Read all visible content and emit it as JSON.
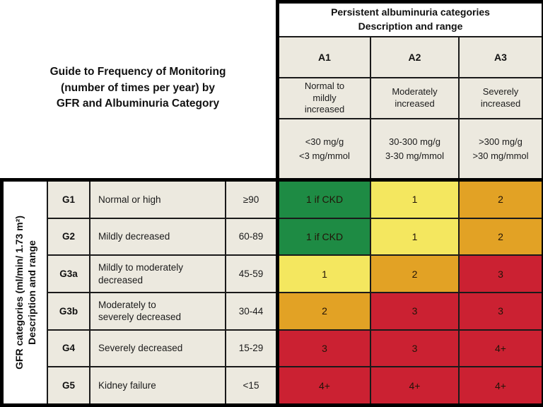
{
  "title": "Guide to Frequency of Monitoring\n(number of times per year) by\nGFR and Albuminuria Category",
  "albuminuria": {
    "title": "Persistent albuminuria categories\nDescription and range",
    "columns": [
      {
        "code": "A1",
        "description": "Normal to\nmildly\nincreased",
        "range": "<30 mg/g\n<3 mg/mmol"
      },
      {
        "code": "A2",
        "description": "Moderately\nincreased",
        "range": "30-300 mg/g\n3-30 mg/mmol"
      },
      {
        "code": "A3",
        "description": "Severely\nincreased",
        "range": ">300 mg/g\n>30 mg/mmol"
      }
    ]
  },
  "gfr_axis_label": "GFR categories (ml/min/ 1.73 m²)\nDescription and range",
  "gfr_rows": [
    {
      "code": "G1",
      "description": "Normal or high",
      "range": "≥90",
      "cells": [
        {
          "text": "1 if CKD",
          "color": "green"
        },
        {
          "text": "1",
          "color": "yellow"
        },
        {
          "text": "2",
          "color": "orange"
        }
      ]
    },
    {
      "code": "G2",
      "description": "Mildly decreased",
      "range": "60-89",
      "cells": [
        {
          "text": "1 if CKD",
          "color": "green"
        },
        {
          "text": "1",
          "color": "yellow"
        },
        {
          "text": "2",
          "color": "orange"
        }
      ]
    },
    {
      "code": "G3a",
      "description": "Mildly to moderately\ndecreased",
      "range": "45-59",
      "cells": [
        {
          "text": "1",
          "color": "yellow"
        },
        {
          "text": "2",
          "color": "orange"
        },
        {
          "text": "3",
          "color": "red"
        }
      ]
    },
    {
      "code": "G3b",
      "description": "Moderately to\nseverely decreased",
      "range": "30-44",
      "cells": [
        {
          "text": "2",
          "color": "orange"
        },
        {
          "text": "3",
          "color": "red"
        },
        {
          "text": "3",
          "color": "red"
        }
      ]
    },
    {
      "code": "G4",
      "description": "Severely decreased",
      "range": "15-29",
      "cells": [
        {
          "text": "3",
          "color": "red"
        },
        {
          "text": "3",
          "color": "red"
        },
        {
          "text": "4+",
          "color": "red"
        }
      ]
    },
    {
      "code": "G5",
      "description": "Kidney failure",
      "range": "<15",
      "cells": [
        {
          "text": "4+",
          "color": "red"
        },
        {
          "text": "4+",
          "color": "red"
        },
        {
          "text": "4+",
          "color": "red"
        }
      ]
    }
  ],
  "palette": {
    "green": "#1e8b44",
    "yellow": "#f4e75f",
    "orange": "#e2a225",
    "red": "#cb2132",
    "label_bg": "#ece9df",
    "header_bg": "#ffffff",
    "border": "#000000"
  },
  "chart_data": {
    "type": "heatmap",
    "title": "Guide to Frequency of Monitoring (number of times per year) by GFR and Albuminuria Category",
    "x_axis_label": "Persistent albuminuria categories Description and range",
    "y_axis_label": "GFR categories (ml/min/ 1.73 m²) Description and range",
    "columns": [
      "A1",
      "A2",
      "A3"
    ],
    "column_descriptions": [
      "Normal to mildly increased",
      "Moderately increased",
      "Severely increased"
    ],
    "column_ranges": [
      "<30 mg/g, <3 mg/mmol",
      "30-300 mg/g, 3-30 mg/mmol",
      ">300 mg/g, >30 mg/mmol"
    ],
    "rows": [
      "G1",
      "G2",
      "G3a",
      "G3b",
      "G4",
      "G5"
    ],
    "row_descriptions": [
      "Normal or high",
      "Mildly decreased",
      "Mildly to moderately decreased",
      "Moderately to severely decreased",
      "Severely decreased",
      "Kidney failure"
    ],
    "row_ranges": [
      "≥90",
      "60-89",
      "45-59",
      "30-44",
      "15-29",
      "<15"
    ],
    "values": [
      [
        "1 if CKD",
        "1",
        "2"
      ],
      [
        "1 if CKD",
        "1",
        "2"
      ],
      [
        "1",
        "2",
        "3"
      ],
      [
        "2",
        "3",
        "3"
      ],
      [
        "3",
        "3",
        "4+"
      ],
      [
        "4+",
        "4+",
        "4+"
      ]
    ],
    "cell_colors": [
      [
        "green",
        "yellow",
        "orange"
      ],
      [
        "green",
        "yellow",
        "orange"
      ],
      [
        "yellow",
        "orange",
        "red"
      ],
      [
        "orange",
        "red",
        "red"
      ],
      [
        "red",
        "red",
        "red"
      ],
      [
        "red",
        "red",
        "red"
      ]
    ],
    "legend_position": "none",
    "grid": true
  }
}
